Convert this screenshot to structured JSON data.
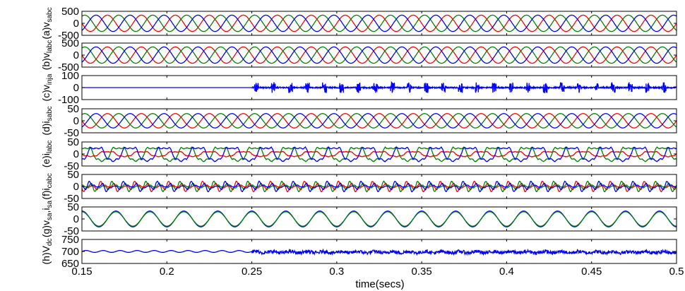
{
  "chart_data": {
    "type": "line",
    "xlabel": "time(secs)",
    "xlim": [
      0.15,
      0.5
    ],
    "xticks": [
      0.15,
      0.2,
      0.25,
      0.3,
      0.35,
      0.4,
      0.45,
      0.5
    ],
    "xtick_labels": [
      "0.15",
      "0.2",
      "0.25",
      "0.3",
      "0.35",
      "0.4",
      "0.45",
      "0.5"
    ],
    "grid": false,
    "colors": {
      "phase_a": "#ff0000",
      "phase_b": "#008000",
      "phase_c": "#0000ff",
      "axes": "#000000"
    },
    "panels": [
      {
        "id": "a",
        "ylabel": {
          "main": "(a)v",
          "sub": "sabc"
        },
        "ylim": [
          -500,
          500
        ],
        "yticks": [
          500,
          0,
          -500
        ],
        "ytick_labels": [
          "500",
          "0",
          "-500"
        ],
        "signal": "three_phase_sine",
        "amplitude": 340,
        "frequency_hz": 50,
        "series": [
          {
            "color": "#ff0000",
            "phase_deg": 0
          },
          {
            "color": "#008000",
            "phase_deg": -120
          },
          {
            "color": "#0000ff",
            "phase_deg": 120
          }
        ]
      },
      {
        "id": "b",
        "ylabel": {
          "main": "(b)v",
          "sub": "labc"
        },
        "ylim": [
          -500,
          500
        ],
        "yticks": [
          500,
          0,
          -500
        ],
        "ytick_labels": [
          "500",
          "0",
          "-500"
        ],
        "signal": "three_phase_sine",
        "amplitude": 340,
        "frequency_hz": 50,
        "series": [
          {
            "color": "#ff0000",
            "phase_deg": 0
          },
          {
            "color": "#008000",
            "phase_deg": -120
          },
          {
            "color": "#0000ff",
            "phase_deg": 120
          }
        ]
      },
      {
        "id": "c",
        "ylabel": {
          "main": "(c)v",
          "sub": "inja"
        },
        "ylim": [
          -100,
          100
        ],
        "yticks": [
          100,
          0,
          -100
        ],
        "ytick_labels": [
          "100",
          "0",
          "-100"
        ],
        "signal": "injected_spikes",
        "start_time": 0.25,
        "spike_amplitude": 45,
        "series": [
          {
            "color": "#0000ff"
          }
        ]
      },
      {
        "id": "d",
        "ylabel": {
          "main": "(d)i",
          "sub": "sabc"
        },
        "ylim": [
          -50,
          50
        ],
        "yticks": [
          50,
          0,
          -50
        ],
        "ytick_labels": [
          "50",
          "0",
          "-50"
        ],
        "signal": "three_phase_sine",
        "amplitude": 30,
        "frequency_hz": 50,
        "series": [
          {
            "color": "#ff0000",
            "phase_deg": 0
          },
          {
            "color": "#008000",
            "phase_deg": -120
          },
          {
            "color": "#0000ff",
            "phase_deg": 120
          }
        ]
      },
      {
        "id": "e",
        "ylabel": {
          "main": "(e)i",
          "sub": "labc"
        },
        "ylim": [
          -50,
          50
        ],
        "yticks": [
          50,
          0,
          -50
        ],
        "ytick_labels": [
          "50",
          "0",
          "-50"
        ],
        "signal": "nonlinear_load_current",
        "amplitude": 33,
        "frequency_hz": 50,
        "series": [
          {
            "color": "#ff0000",
            "phase_deg": 0,
            "amplitude": 12
          },
          {
            "color": "#008000",
            "phase_deg": -120
          },
          {
            "color": "#0000ff",
            "phase_deg": 120
          }
        ]
      },
      {
        "id": "f",
        "ylabel": {
          "main": "(f)i",
          "sub": "cabc"
        },
        "ylim": [
          -50,
          50
        ],
        "yticks": [
          50,
          0,
          -50
        ],
        "ytick_labels": [
          "50",
          "0",
          "-50"
        ],
        "signal": "compensator_current",
        "amplitude": 20,
        "frequency_hz": 50,
        "series": [
          {
            "color": "#ff0000",
            "phase_deg": 0
          },
          {
            "color": "#008000",
            "phase_deg": -120
          },
          {
            "color": "#0000ff",
            "phase_deg": 120
          }
        ]
      },
      {
        "id": "g",
        "ylabel": {
          "main": "(g)v",
          "sub": "sa",
          "mid": ",i",
          "sub2": "sa"
        },
        "ylim": [
          -50,
          50
        ],
        "yticks": [
          50,
          0,
          -50
        ],
        "ytick_labels": [
          "50",
          "0",
          "-50"
        ],
        "signal": "voltage_current_in_phase",
        "amplitude": 33,
        "frequency_hz": 50,
        "series": [
          {
            "color": "#0000ff",
            "phase_deg": 0
          },
          {
            "color": "#008000",
            "phase_deg": 0,
            "amplitude": 30
          }
        ]
      },
      {
        "id": "h",
        "ylabel": {
          "main": "(h)V",
          "sub": "dc"
        },
        "ylim": [
          650,
          750
        ],
        "yticks": [
          750,
          700,
          650
        ],
        "ytick_labels": [
          "750",
          "700",
          "650"
        ],
        "signal": "dc_link_voltage",
        "mean": 700,
        "ripple_before": 4,
        "ripple_after": 10,
        "start_time": 0.25,
        "series": [
          {
            "color": "#0000ff"
          }
        ]
      }
    ]
  }
}
